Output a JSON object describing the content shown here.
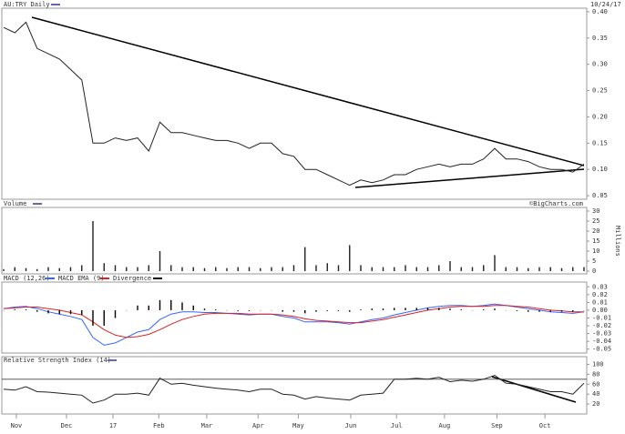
{
  "chart_data": [
    {
      "type": "line",
      "title": "AU:TRY Daily",
      "date": "10/24/17",
      "series": [
        {
          "name": "AU:TRY Daily",
          "color": "#222222",
          "values": [
            0.37,
            0.36,
            0.38,
            0.33,
            0.32,
            0.31,
            0.29,
            0.27,
            0.15,
            0.15,
            0.16,
            0.155,
            0.16,
            0.135,
            0.19,
            0.17,
            0.17,
            0.165,
            0.16,
            0.155,
            0.155,
            0.15,
            0.14,
            0.15,
            0.15,
            0.13,
            0.125,
            0.1,
            0.1,
            0.09,
            0.08,
            0.07,
            0.08,
            0.075,
            0.08,
            0.09,
            0.09,
            0.1,
            0.105,
            0.11,
            0.105,
            0.11,
            0.11,
            0.12,
            0.14,
            0.12,
            0.12,
            0.115,
            0.105,
            0.1,
            0.1,
            0.095,
            0.11
          ]
        }
      ],
      "ylim": [
        0.045,
        0.405
      ],
      "yticks": [
        {
          "value": 0.05,
          "label": "0.05"
        },
        {
          "value": 0.1,
          "label": "0.10"
        },
        {
          "value": 0.15,
          "label": "0.15"
        },
        {
          "value": 0.2,
          "label": "0.20"
        },
        {
          "value": 0.25,
          "label": "0.25"
        },
        {
          "value": 0.3,
          "label": "0.30"
        },
        {
          "value": 0.35,
          "label": "0.35"
        },
        {
          "value": 0.4,
          "label": "0.40"
        }
      ],
      "grid": false
    },
    {
      "type": "bar",
      "title": "Volume",
      "credit": "©BigCharts.com",
      "ylabel": "Millions",
      "color": "#222222",
      "values": [
        1,
        2,
        1.5,
        1,
        2,
        1.5,
        2,
        3,
        25,
        4,
        3,
        2,
        2,
        3,
        10,
        3,
        2,
        2,
        1.5,
        2,
        1.5,
        2,
        2,
        1.5,
        2,
        2,
        3,
        12,
        3,
        4,
        3,
        13,
        3,
        2,
        2,
        2,
        3,
        2,
        2,
        3,
        5,
        2,
        2,
        3,
        8,
        2,
        2,
        1.5,
        2,
        2,
        1.5,
        2,
        2
      ],
      "ylim": [
        0,
        30
      ],
      "yticks": [
        0,
        5,
        10,
        15,
        20,
        25,
        30
      ],
      "grid": false
    },
    {
      "type": "line",
      "series": [
        {
          "name": "MACD (12,26)",
          "color": "#3366ff",
          "values": [
            0.002,
            0.004,
            0.005,
            0.002,
            -0.002,
            -0.005,
            -0.008,
            -0.012,
            -0.035,
            -0.045,
            -0.042,
            -0.035,
            -0.028,
            -0.025,
            -0.012,
            -0.005,
            -0.002,
            -0.002,
            -0.003,
            -0.003,
            -0.004,
            -0.005,
            -0.006,
            -0.005,
            -0.005,
            -0.008,
            -0.01,
            -0.015,
            -0.015,
            -0.015,
            -0.016,
            -0.018,
            -0.015,
            -0.012,
            -0.01,
            -0.006,
            -0.003,
            0,
            0.003,
            0.005,
            0.006,
            0.006,
            0.005,
            0.006,
            0.008,
            0.006,
            0.004,
            0.002,
            0,
            -0.002,
            -0.003,
            -0.004,
            -0.002
          ]
        },
        {
          "name": "MACD EMA (9)",
          "color": "#dd2222",
          "values": [
            0.002,
            0.003,
            0.004,
            0.004,
            0.002,
            0,
            -0.003,
            -0.006,
            -0.015,
            -0.025,
            -0.032,
            -0.035,
            -0.034,
            -0.031,
            -0.025,
            -0.018,
            -0.012,
            -0.008,
            -0.005,
            -0.004,
            -0.004,
            -0.004,
            -0.005,
            -0.005,
            -0.005,
            -0.006,
            -0.008,
            -0.011,
            -0.013,
            -0.014,
            -0.015,
            -0.016,
            -0.016,
            -0.014,
            -0.012,
            -0.009,
            -0.006,
            -0.003,
            0,
            0.002,
            0.004,
            0.005,
            0.005,
            0.005,
            0.006,
            0.006,
            0.005,
            0.004,
            0.002,
            0,
            -0.001,
            -0.002,
            -0.002
          ]
        },
        {
          "name": "Divergence",
          "color": "#000000",
          "kind": "bar",
          "values": [
            0,
            0.001,
            0.001,
            -0.002,
            -0.004,
            -0.005,
            -0.005,
            -0.006,
            -0.02,
            -0.02,
            -0.01,
            0,
            0.006,
            0.006,
            0.013,
            0.013,
            0.01,
            0.006,
            0.002,
            0.001,
            0,
            -0.001,
            -0.001,
            0,
            0,
            -0.002,
            -0.002,
            -0.004,
            -0.002,
            -0.001,
            -0.001,
            -0.002,
            0.001,
            0.002,
            0.002,
            0.003,
            0.003,
            0.003,
            0.003,
            0.003,
            0.002,
            0.001,
            0,
            0.001,
            0.002,
            0,
            -0.001,
            -0.002,
            -0.002,
            -0.002,
            -0.002,
            -0.002,
            0
          ]
        }
      ],
      "ylim": [
        -0.055,
        0.035
      ],
      "yticks": [
        {
          "value": 0.03,
          "label": "0.03"
        },
        {
          "value": 0.02,
          "label": "0.02"
        },
        {
          "value": 0.01,
          "label": "0.01"
        },
        {
          "value": 0,
          "label": "0.00"
        },
        {
          "value": -0.01,
          "label": "-0.01"
        },
        {
          "value": -0.02,
          "label": "-0.02"
        },
        {
          "value": -0.03,
          "label": "-0.03"
        },
        {
          "value": -0.04,
          "label": "-0.04"
        },
        {
          "value": -0.05,
          "label": "-0.05"
        }
      ],
      "grid": false
    },
    {
      "type": "line",
      "title": "Relative Strength Index (14)",
      "series": [
        {
          "name": "Relative Strength Index (14)",
          "color": "#222222",
          "values": [
            50,
            48,
            55,
            45,
            44,
            42,
            40,
            38,
            22,
            28,
            40,
            40,
            42,
            38,
            72,
            60,
            62,
            58,
            55,
            52,
            50,
            48,
            45,
            50,
            50,
            40,
            38,
            30,
            35,
            32,
            30,
            28,
            38,
            40,
            42,
            70,
            70,
            72,
            70,
            74,
            65,
            68,
            66,
            70,
            78,
            62,
            60,
            55,
            50,
            45,
            45,
            40,
            62
          ]
        }
      ],
      "reference_line": 70,
      "ylim": [
        0,
        110
      ],
      "yticks": [
        20,
        40,
        60,
        80,
        100
      ],
      "xticks": [
        {
          "value": 1.14,
          "label": "Nov"
        },
        {
          "value": 5.63,
          "label": "Dec"
        },
        {
          "value": 9.8,
          "label": "17"
        },
        {
          "value": 13.9,
          "label": "Feb"
        },
        {
          "value": 18.2,
          "label": "Mar"
        },
        {
          "value": 22.8,
          "label": "Apr"
        },
        {
          "value": 26.4,
          "label": "May"
        },
        {
          "value": 31.1,
          "label": "Jun"
        },
        {
          "value": 35.2,
          "label": "Jul"
        },
        {
          "value": 39.5,
          "label": "Aug"
        },
        {
          "value": 44.2,
          "label": "Sep"
        },
        {
          "value": 48.5,
          "label": "Oct"
        }
      ],
      "grid": false
    }
  ]
}
